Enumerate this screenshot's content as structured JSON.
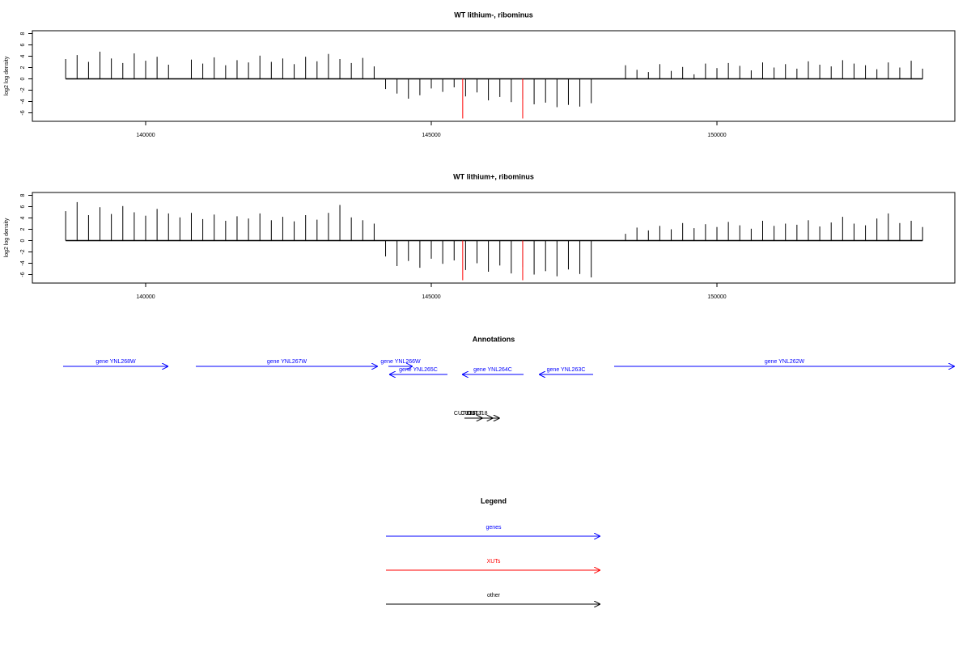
{
  "chart_data": [
    {
      "type": "spike",
      "title": "WT lithium-, ribominus",
      "y_label": "log2 log density",
      "xlim": [
        138017,
        154164
      ],
      "ylim": [
        -7.5,
        8.5
      ],
      "xticks": [
        140000,
        145000,
        150000
      ],
      "yticks": [
        -6,
        -4,
        -2,
        0,
        2,
        4,
        6,
        8
      ],
      "x": [
        138600,
        138800,
        139000,
        139200,
        139400,
        139600,
        139800,
        140000,
        140200,
        140400,
        140600,
        140800,
        141000,
        141200,
        141400,
        141600,
        141800,
        142000,
        142200,
        142400,
        142600,
        142800,
        143000,
        143200,
        143400,
        143600,
        143800,
        144000,
        144200,
        144400,
        144600,
        144800,
        145000,
        145200,
        145400,
        145600,
        145800,
        146000,
        146200,
        146400,
        146600,
        146800,
        147000,
        147200,
        147400,
        147600,
        147800,
        148000,
        148200,
        148400,
        148600,
        148800,
        149000,
        149200,
        149400,
        149600,
        149800,
        150000,
        150200,
        150400,
        150600,
        150800,
        151000,
        151200,
        151400,
        151600,
        151800,
        152000,
        152200,
        152400,
        152600,
        152800,
        153000,
        153200,
        153400,
        153600
      ],
      "series": [
        {
          "color": "#000000",
          "values": [
            3.5,
            4.2,
            3.0,
            4.8,
            3.6,
            2.8,
            4.5,
            3.2,
            3.9,
            2.5,
            0,
            3.4,
            2.7,
            3.8,
            2.4,
            3.3,
            2.9,
            4.1,
            3.0,
            3.6,
            2.6,
            3.9,
            3.1,
            4.4,
            3.5,
            2.8,
            3.7,
            2.2,
            -1.8,
            -2.6,
            -3.5,
            -2.9,
            -1.7,
            -2.3,
            -1.5,
            -3.1,
            -2.4,
            -3.8,
            -3.2,
            -4.1,
            -3.6,
            -4.5,
            -4.2,
            -5.0,
            -4.6,
            -4.9,
            -4.3,
            0,
            0,
            2.4,
            1.6,
            1.2,
            2.6,
            1.4,
            2.1,
            0.8,
            2.7,
            1.9,
            2.8,
            2.3,
            1.5,
            2.9,
            2.0,
            2.6,
            1.8,
            3.1,
            2.5,
            2.2,
            3.3,
            2.7,
            2.4,
            1.7,
            2.9,
            2.0,
            3.2,
            1.8
          ]
        }
      ],
      "highlights": {
        "color": "#ff0000",
        "x": [
          145550,
          146600
        ],
        "values": [
          -7,
          -7
        ]
      }
    },
    {
      "type": "spike",
      "title": "WT lithium+, ribominus",
      "y_label": "log2 log density",
      "xlim": [
        138017,
        154164
      ],
      "ylim": [
        -7.5,
        8.5
      ],
      "xticks": [
        140000,
        145000,
        150000
      ],
      "yticks": [
        -6,
        -4,
        -2,
        0,
        2,
        4,
        6,
        8
      ],
      "x": [
        138600,
        138800,
        139000,
        139200,
        139400,
        139600,
        139800,
        140000,
        140200,
        140400,
        140600,
        140800,
        141000,
        141200,
        141400,
        141600,
        141800,
        142000,
        142200,
        142400,
        142600,
        142800,
        143000,
        143200,
        143400,
        143600,
        143800,
        144000,
        144200,
        144400,
        144600,
        144800,
        145000,
        145200,
        145400,
        145600,
        145800,
        146000,
        146200,
        146400,
        146600,
        146800,
        147000,
        147200,
        147400,
        147600,
        147800,
        148000,
        148200,
        148400,
        148600,
        148800,
        149000,
        149200,
        149400,
        149600,
        149800,
        150000,
        150200,
        150400,
        150600,
        150800,
        151000,
        151200,
        151400,
        151600,
        151800,
        152000,
        152200,
        152400,
        152600,
        152800,
        153000,
        153200,
        153400,
        153600
      ],
      "series": [
        {
          "color": "#000000",
          "values": [
            5.2,
            6.8,
            4.5,
            5.9,
            4.7,
            6.1,
            5.0,
            4.4,
            5.6,
            4.8,
            4.1,
            4.9,
            3.8,
            4.6,
            3.5,
            4.3,
            3.9,
            4.8,
            3.6,
            4.2,
            3.4,
            4.5,
            3.7,
            4.9,
            6.3,
            4.1,
            3.6,
            3.0,
            -2.8,
            -4.5,
            -3.6,
            -4.8,
            -3.2,
            -4.1,
            -3.5,
            -5.2,
            -4.0,
            -5.5,
            -4.4,
            -5.8,
            -4.7,
            -6.0,
            -5.4,
            -6.3,
            -5.1,
            -5.9,
            -6.5,
            0,
            0,
            1.2,
            2.3,
            1.8,
            2.6,
            2.0,
            3.1,
            2.2,
            2.9,
            2.4,
            3.3,
            2.7,
            2.1,
            3.5,
            2.6,
            3.0,
            2.8,
            3.6,
            2.5,
            3.2,
            4.2,
            3.0,
            2.7,
            3.9,
            4.8,
            3.1,
            3.5,
            2.4
          ]
        }
      ],
      "highlights": {
        "color": "#ff0000",
        "x": [
          145550,
          146600
        ],
        "values": [
          -7,
          -7
        ]
      }
    }
  ],
  "annotations": {
    "title": "Annotations",
    "genes": [
      {
        "label": "gene YNL268W",
        "start": 138555,
        "end": 140397,
        "strand": "+"
      },
      {
        "label": "gene YNL267W",
        "start": 140878,
        "end": 144065,
        "strand": "+"
      },
      {
        "label": "gene YNL266W",
        "start": 144249,
        "end": 144674,
        "strand": "+"
      },
      {
        "label": "gene YNL265C",
        "start": 144263,
        "end": 145283,
        "strand": "-"
      },
      {
        "label": "gene YNL264C",
        "start": 145538,
        "end": 146615,
        "strand": "-"
      },
      {
        "label": "gene YNL263C",
        "start": 146884,
        "end": 147833,
        "strand": "-"
      },
      {
        "label": "gene YNL262W",
        "start": 148201,
        "end": 154164,
        "strand": "+"
      }
    ],
    "other": [
      {
        "label": "CUT316",
        "start": 145580,
        "end": 145900
      },
      {
        "label": "CUT317",
        "start": 145700,
        "end": 146080
      },
      {
        "label": "CUT318",
        "start": 145800,
        "end": 146200
      }
    ]
  },
  "legend": {
    "title": "Legend",
    "items": [
      {
        "label": "genes",
        "color": "#0000ff"
      },
      {
        "label": "XUTs",
        "color": "#ff0000"
      },
      {
        "label": "other",
        "color": "#000000"
      }
    ]
  }
}
